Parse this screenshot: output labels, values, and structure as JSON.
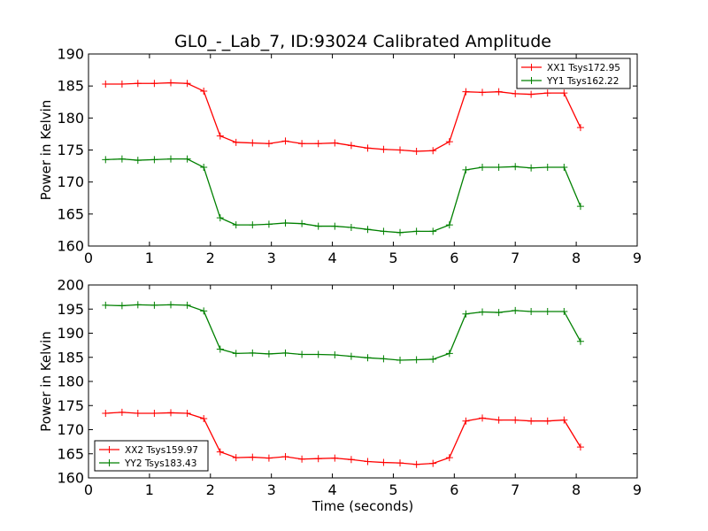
{
  "chart_data": [
    {
      "type": "line",
      "title": "GL0_-_Lab_7, ID:93024 Calibrated Amplitude",
      "xlabel": "",
      "ylabel": "Power in Kelvin",
      "xlim": [
        0,
        9
      ],
      "ylim": [
        160,
        190
      ],
      "xticks": [
        "0",
        "1",
        "2",
        "3",
        "4",
        "5",
        "6",
        "7",
        "8",
        "9"
      ],
      "yticks": [
        "160",
        "165",
        "170",
        "175",
        "180",
        "185",
        "190"
      ],
      "grid": false,
      "legend_position": "top-right",
      "x": [
        0.28,
        0.55,
        0.81,
        1.08,
        1.35,
        1.62,
        1.89,
        2.16,
        2.42,
        2.69,
        2.96,
        3.23,
        3.5,
        3.77,
        4.04,
        4.31,
        4.58,
        4.84,
        5.11,
        5.38,
        5.65,
        5.92,
        6.19,
        6.46,
        6.73,
        7.0,
        7.26,
        7.53,
        7.8,
        8.07
      ],
      "series": [
        {
          "name": "XX1 Tsys172.95",
          "color": "#ff0000",
          "values": [
            185.3,
            185.3,
            185.4,
            185.4,
            185.5,
            185.4,
            184.2,
            177.2,
            176.2,
            176.1,
            176.0,
            176.4,
            176.0,
            176.0,
            176.1,
            175.7,
            175.3,
            175.1,
            175.0,
            174.8,
            174.9,
            176.3,
            184.1,
            184.0,
            184.1,
            183.8,
            183.7,
            183.9,
            183.9,
            178.5
          ]
        },
        {
          "name": "YY1 Tsys162.22",
          "color": "#008000",
          "values": [
            173.5,
            173.6,
            173.4,
            173.5,
            173.6,
            173.6,
            172.3,
            164.4,
            163.3,
            163.3,
            163.4,
            163.6,
            163.5,
            163.1,
            163.1,
            162.9,
            162.6,
            162.3,
            162.1,
            162.3,
            162.3,
            163.3,
            171.9,
            172.3,
            172.3,
            172.4,
            172.2,
            172.3,
            172.3,
            166.2
          ]
        }
      ]
    },
    {
      "type": "line",
      "title": "",
      "xlabel": "Time (seconds)",
      "ylabel": "Power in Kelvin",
      "xlim": [
        0,
        9
      ],
      "ylim": [
        160,
        200
      ],
      "xticks": [
        "0",
        "1",
        "2",
        "3",
        "4",
        "5",
        "6",
        "7",
        "8",
        "9"
      ],
      "yticks": [
        "160",
        "165",
        "170",
        "175",
        "180",
        "185",
        "190",
        "195",
        "200"
      ],
      "grid": false,
      "legend_position": "bottom-left",
      "x": [
        0.28,
        0.55,
        0.81,
        1.08,
        1.35,
        1.62,
        1.89,
        2.16,
        2.42,
        2.69,
        2.96,
        3.23,
        3.5,
        3.77,
        4.04,
        4.31,
        4.58,
        4.84,
        5.11,
        5.38,
        5.65,
        5.92,
        6.19,
        6.46,
        6.73,
        7.0,
        7.26,
        7.53,
        7.8,
        8.07
      ],
      "series": [
        {
          "name": "XX2 Tsys159.97",
          "color": "#ff0000",
          "values": [
            173.4,
            173.6,
            173.4,
            173.4,
            173.5,
            173.4,
            172.3,
            165.4,
            164.2,
            164.3,
            164.1,
            164.4,
            163.9,
            164.0,
            164.1,
            163.8,
            163.4,
            163.2,
            163.1,
            162.8,
            163.0,
            164.2,
            171.8,
            172.4,
            172.0,
            172.0,
            171.8,
            171.8,
            172.0,
            166.4
          ]
        },
        {
          "name": "YY2 Tsys183.43",
          "color": "#008000",
          "values": [
            195.8,
            195.7,
            195.9,
            195.8,
            195.9,
            195.8,
            194.6,
            186.7,
            185.8,
            185.9,
            185.7,
            185.9,
            185.6,
            185.6,
            185.5,
            185.2,
            184.9,
            184.7,
            184.4,
            184.5,
            184.6,
            185.8,
            194.0,
            194.4,
            194.3,
            194.7,
            194.5,
            194.5,
            194.5,
            188.3
          ]
        }
      ]
    }
  ]
}
